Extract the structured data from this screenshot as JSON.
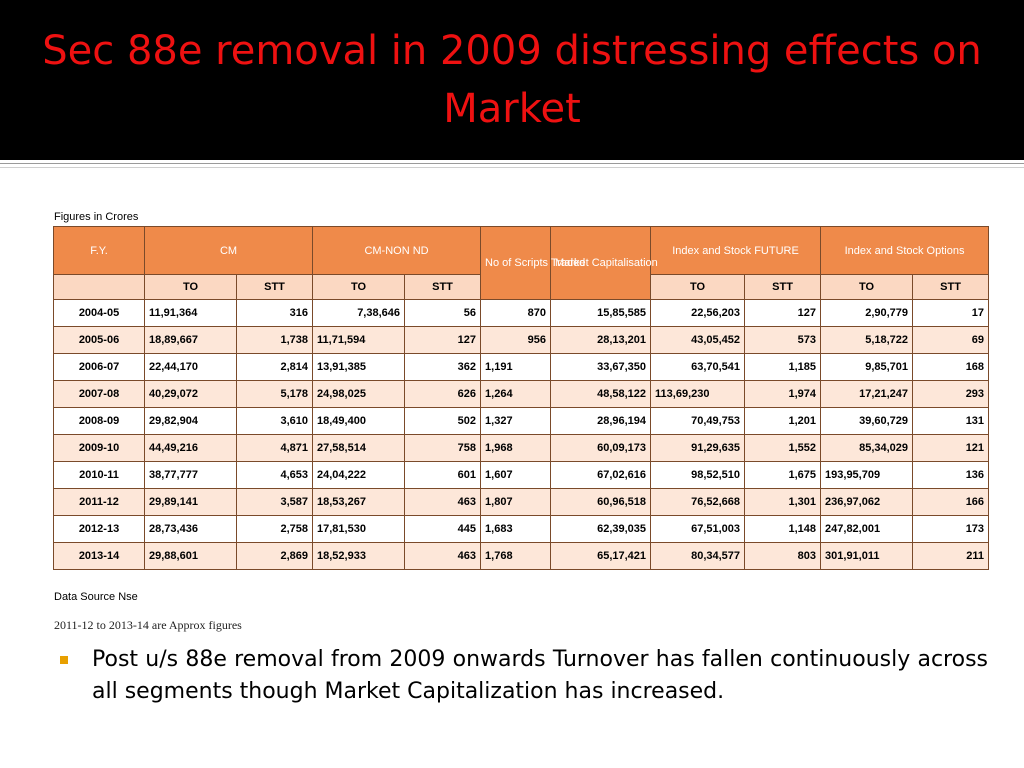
{
  "slide": {
    "title": "Sec 88e removal in 2009 distressing effects on Market",
    "caption_top": "Figures in Crores",
    "caption_source": "Data Source Nse",
    "caption_note": "2011-12 to 2013-14 are Approx figures",
    "bullet": "Post u/s 88e removal from 2009 onwards Turnover has fallen continuously across all segments though Market Capitalization has increased.",
    "colors": {
      "title_bg": "#000000",
      "title_text": "#ee1111",
      "header_bg": "#ef8a4a",
      "subheader_bg": "#fbd8c2",
      "alt_row_bg": "#fde7d9",
      "bullet": "#e8a000"
    }
  },
  "table": {
    "headers": {
      "fy": "F.Y.",
      "cm": "CM",
      "cm_non_nd": "CM-NON ND",
      "scripts": "No of Scripts Traded",
      "mcap": "Market Capitalisation",
      "future": "Index and Stock FUTURE",
      "options": "Index and Stock Options",
      "to": "TO",
      "stt": "STT"
    },
    "rows": [
      [
        "2004-05",
        "11,91,364",
        "316",
        "7,38,646",
        "56",
        "870",
        "15,85,585",
        "22,56,203",
        "127",
        "2,90,779",
        "17"
      ],
      [
        "2005-06",
        "18,89,667",
        "1,738",
        "11,71,594",
        "127",
        "956",
        "28,13,201",
        "43,05,452",
        "573",
        "5,18,722",
        "69"
      ],
      [
        "2006-07",
        "22,44,170",
        "2,814",
        "13,91,385",
        "362",
        "1,191",
        "33,67,350",
        "63,70,541",
        "1,185",
        "9,85,701",
        "168"
      ],
      [
        "2007-08",
        "40,29,072",
        "5,178",
        "24,98,025",
        "626",
        "1,264",
        "48,58,122",
        "113,69,230",
        "1,974",
        "17,21,247",
        "293"
      ],
      [
        "2008-09",
        "29,82,904",
        "3,610",
        "18,49,400",
        "502",
        "1,327",
        "28,96,194",
        "70,49,753",
        "1,201",
        "39,60,729",
        "131"
      ],
      [
        "2009-10",
        "44,49,216",
        "4,871",
        "27,58,514",
        "758",
        "1,968",
        "60,09,173",
        "91,29,635",
        "1,552",
        "85,34,029",
        "121"
      ],
      [
        "2010-11",
        "38,77,777",
        "4,653",
        "24,04,222",
        "601",
        "1,607",
        "67,02,616",
        "98,52,510",
        "1,675",
        "193,95,709",
        "136"
      ],
      [
        "2011-12",
        "29,89,141",
        "3,587",
        "18,53,267",
        "463",
        "1,807",
        "60,96,518",
        "76,52,668",
        "1,301",
        "236,97,062",
        "166"
      ],
      [
        "2012-13",
        "28,73,436",
        "2,758",
        "17,81,530",
        "445",
        "1,683",
        "62,39,035",
        "67,51,003",
        "1,148",
        "247,82,001",
        "173"
      ],
      [
        "2013-14",
        "29,88,601",
        "2,869",
        "18,52,933",
        "463",
        "1,768",
        "65,17,421",
        "80,34,577",
        "803",
        "301,91,011",
        "211"
      ]
    ]
  }
}
